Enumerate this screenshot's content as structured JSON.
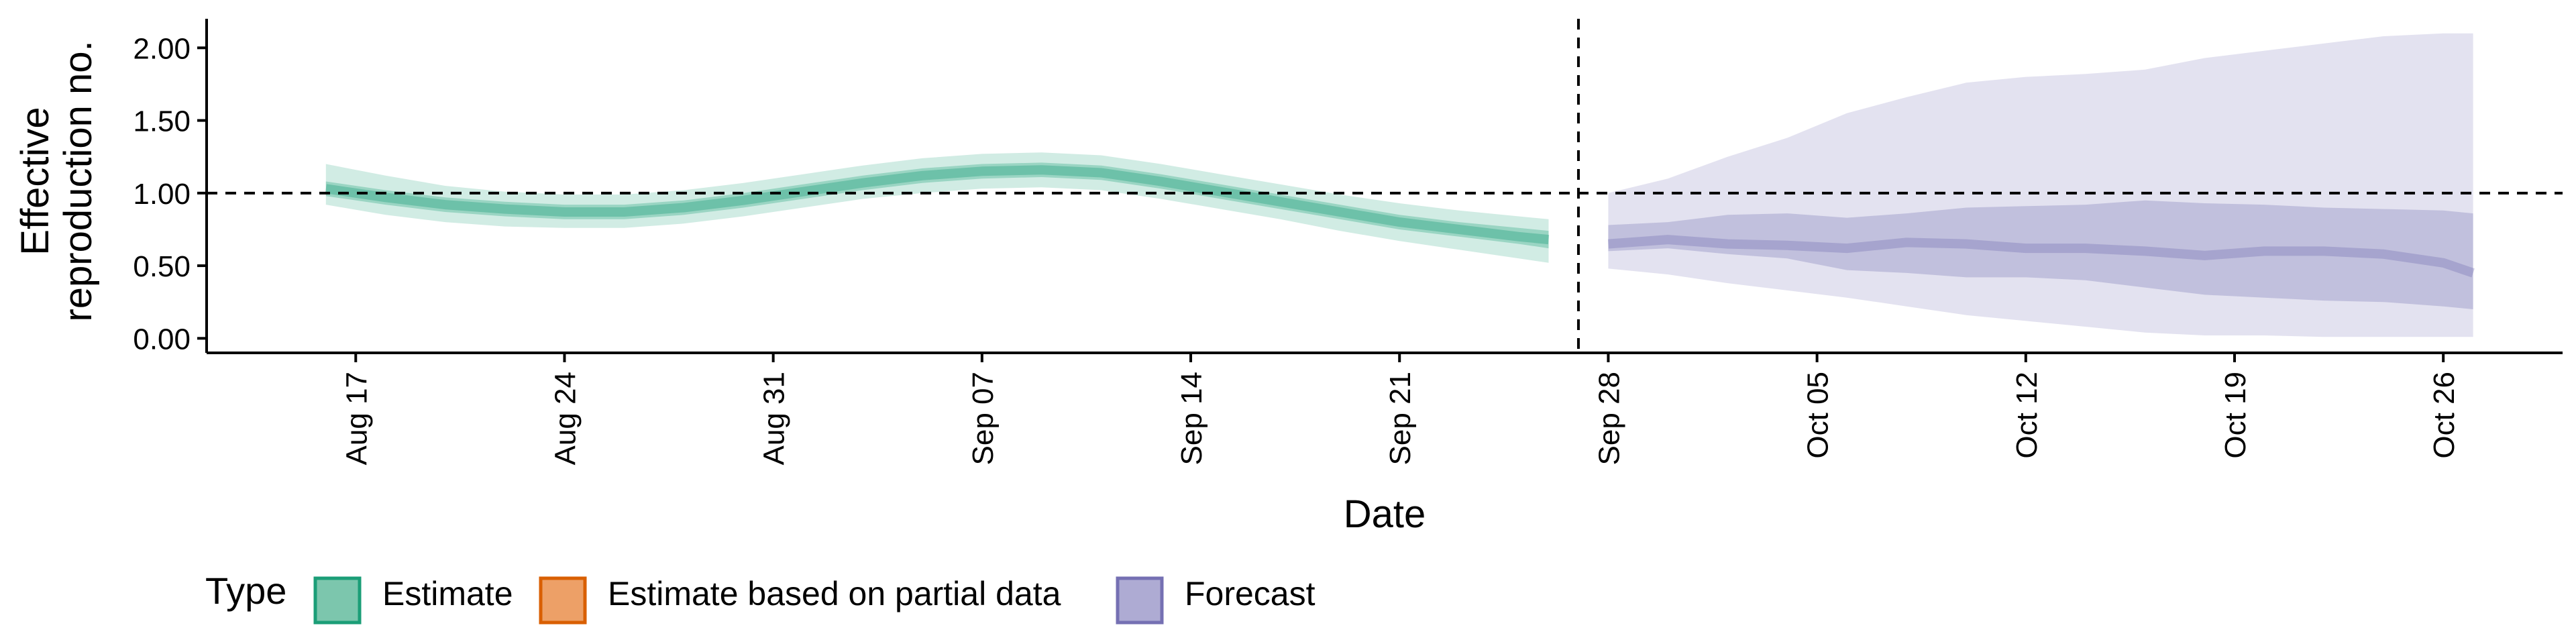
{
  "chart_data": {
    "type": "area",
    "xlabel": "Date",
    "ylabel_lines": [
      "Effective",
      "reproduction no."
    ],
    "ylim": [
      -0.1,
      2.2
    ],
    "y_ticks": [
      0.0,
      0.5,
      1.0,
      1.5,
      2.0
    ],
    "y_tick_labels": [
      "0.00",
      "0.50",
      "1.00",
      "1.50",
      "2.00"
    ],
    "x_range": [
      "2021-08-12",
      "2021-10-30"
    ],
    "x_ticks": [
      "2021-08-17",
      "2021-08-24",
      "2021-08-31",
      "2021-09-07",
      "2021-09-14",
      "2021-09-21",
      "2021-09-28",
      "2021-10-05",
      "2021-10-12",
      "2021-10-19",
      "2021-10-26"
    ],
    "x_tick_labels": [
      "Aug 17",
      "Aug 24",
      "Aug 31",
      "Sep 07",
      "Sep 14",
      "Sep 21",
      "Sep 28",
      "Oct 05",
      "Oct 12",
      "Oct 19",
      "Oct 26"
    ],
    "reference_line_y": 1.0,
    "forecast_start_date": "2021-09-27",
    "grid": false,
    "legend": {
      "title": "Type",
      "position": "bottom",
      "items": [
        {
          "label": "Estimate",
          "fill": "#7cc6ad",
          "stroke": "#1b9e77"
        },
        {
          "label": "Estimate based on partial data",
          "fill": "#eda067",
          "stroke": "#d95f02"
        },
        {
          "label": "Forecast",
          "fill": "#aeabd3",
          "stroke": "#7570b3"
        }
      ]
    },
    "series": [
      {
        "name": "Estimate",
        "color": "#1b9e77",
        "points": [
          {
            "date": "2021-08-16",
            "median": 1.03,
            "lower50": 0.98,
            "upper50": 1.08,
            "lower90": 0.92,
            "upper90": 1.2
          },
          {
            "date": "2021-08-18",
            "median": 0.97,
            "lower50": 0.92,
            "upper50": 1.02,
            "lower90": 0.85,
            "upper90": 1.12
          },
          {
            "date": "2021-08-20",
            "median": 0.92,
            "lower50": 0.87,
            "upper50": 0.97,
            "lower90": 0.8,
            "upper90": 1.05
          },
          {
            "date": "2021-08-22",
            "median": 0.89,
            "lower50": 0.84,
            "upper50": 0.94,
            "lower90": 0.77,
            "upper90": 1.01
          },
          {
            "date": "2021-08-24",
            "median": 0.87,
            "lower50": 0.82,
            "upper50": 0.92,
            "lower90": 0.76,
            "upper90": 0.99
          },
          {
            "date": "2021-08-26",
            "median": 0.87,
            "lower50": 0.82,
            "upper50": 0.92,
            "lower90": 0.76,
            "upper90": 0.99
          },
          {
            "date": "2021-08-28",
            "median": 0.9,
            "lower50": 0.85,
            "upper50": 0.95,
            "lower90": 0.79,
            "upper90": 1.02
          },
          {
            "date": "2021-08-30",
            "median": 0.95,
            "lower50": 0.9,
            "upper50": 1.0,
            "lower90": 0.84,
            "upper90": 1.07
          },
          {
            "date": "2021-09-01",
            "median": 1.01,
            "lower50": 0.96,
            "upper50": 1.06,
            "lower90": 0.9,
            "upper90": 1.13
          },
          {
            "date": "2021-09-03",
            "median": 1.07,
            "lower50": 1.02,
            "upper50": 1.12,
            "lower90": 0.96,
            "upper90": 1.19
          },
          {
            "date": "2021-09-05",
            "median": 1.12,
            "lower50": 1.07,
            "upper50": 1.17,
            "lower90": 1.0,
            "upper90": 1.24
          },
          {
            "date": "2021-09-07",
            "median": 1.15,
            "lower50": 1.1,
            "upper50": 1.2,
            "lower90": 1.03,
            "upper90": 1.27
          },
          {
            "date": "2021-09-09",
            "median": 1.16,
            "lower50": 1.11,
            "upper50": 1.21,
            "lower90": 1.04,
            "upper90": 1.28
          },
          {
            "date": "2021-09-11",
            "median": 1.14,
            "lower50": 1.09,
            "upper50": 1.19,
            "lower90": 1.02,
            "upper90": 1.26
          },
          {
            "date": "2021-09-13",
            "median": 1.08,
            "lower50": 1.03,
            "upper50": 1.13,
            "lower90": 0.96,
            "upper90": 1.2
          },
          {
            "date": "2021-09-15",
            "median": 1.01,
            "lower50": 0.96,
            "upper50": 1.06,
            "lower90": 0.89,
            "upper90": 1.13
          },
          {
            "date": "2021-09-17",
            "median": 0.94,
            "lower50": 0.89,
            "upper50": 0.99,
            "lower90": 0.82,
            "upper90": 1.06
          },
          {
            "date": "2021-09-19",
            "median": 0.87,
            "lower50": 0.82,
            "upper50": 0.92,
            "lower90": 0.74,
            "upper90": 0.99
          },
          {
            "date": "2021-09-21",
            "median": 0.8,
            "lower50": 0.75,
            "upper50": 0.85,
            "lower90": 0.67,
            "upper90": 0.93
          },
          {
            "date": "2021-09-23",
            "median": 0.75,
            "lower50": 0.7,
            "upper50": 0.8,
            "lower90": 0.61,
            "upper90": 0.88
          },
          {
            "date": "2021-09-25",
            "median": 0.7,
            "lower50": 0.65,
            "upper50": 0.76,
            "lower90": 0.55,
            "upper90": 0.84
          },
          {
            "date": "2021-09-26",
            "median": 0.68,
            "lower50": 0.62,
            "upper50": 0.74,
            "lower90": 0.52,
            "upper90": 0.82
          }
        ]
      },
      {
        "name": "Forecast",
        "color": "#7570b3",
        "points": [
          {
            "date": "2021-09-28",
            "median": 0.65,
            "lower50": 0.6,
            "upper50": 0.78,
            "lower90": 0.48,
            "upper90": 1.0
          },
          {
            "date": "2021-09-30",
            "median": 0.68,
            "lower50": 0.62,
            "upper50": 0.8,
            "lower90": 0.44,
            "upper90": 1.1
          },
          {
            "date": "2021-10-02",
            "median": 0.65,
            "lower50": 0.58,
            "upper50": 0.85,
            "lower90": 0.38,
            "upper90": 1.25
          },
          {
            "date": "2021-10-04",
            "median": 0.64,
            "lower50": 0.55,
            "upper50": 0.86,
            "lower90": 0.33,
            "upper90": 1.38
          },
          {
            "date": "2021-10-06",
            "median": 0.62,
            "lower50": 0.47,
            "upper50": 0.83,
            "lower90": 0.28,
            "upper90": 1.55
          },
          {
            "date": "2021-10-08",
            "median": 0.66,
            "lower50": 0.45,
            "upper50": 0.86,
            "lower90": 0.22,
            "upper90": 1.66
          },
          {
            "date": "2021-10-10",
            "median": 0.65,
            "lower50": 0.42,
            "upper50": 0.9,
            "lower90": 0.16,
            "upper90": 1.76
          },
          {
            "date": "2021-10-12",
            "median": 0.62,
            "lower50": 0.42,
            "upper50": 0.91,
            "lower90": 0.12,
            "upper90": 1.8
          },
          {
            "date": "2021-10-14",
            "median": 0.62,
            "lower50": 0.4,
            "upper50": 0.92,
            "lower90": 0.08,
            "upper90": 1.82
          },
          {
            "date": "2021-10-16",
            "median": 0.6,
            "lower50": 0.35,
            "upper50": 0.95,
            "lower90": 0.04,
            "upper90": 1.85
          },
          {
            "date": "2021-10-18",
            "median": 0.57,
            "lower50": 0.3,
            "upper50": 0.93,
            "lower90": 0.02,
            "upper90": 1.93
          },
          {
            "date": "2021-10-20",
            "median": 0.6,
            "lower50": 0.28,
            "upper50": 0.92,
            "lower90": 0.02,
            "upper90": 1.98
          },
          {
            "date": "2021-10-22",
            "median": 0.6,
            "lower50": 0.26,
            "upper50": 0.9,
            "lower90": 0.01,
            "upper90": 2.03
          },
          {
            "date": "2021-10-24",
            "median": 0.58,
            "lower50": 0.25,
            "upper50": 0.89,
            "lower90": 0.01,
            "upper90": 2.08
          },
          {
            "date": "2021-10-26",
            "median": 0.52,
            "lower50": 0.22,
            "upper50": 0.88,
            "lower90": 0.01,
            "upper90": 2.1
          },
          {
            "date": "2021-10-27",
            "median": 0.45,
            "lower50": 0.2,
            "upper50": 0.86,
            "lower90": 0.01,
            "upper90": 2.1
          }
        ]
      }
    ]
  }
}
